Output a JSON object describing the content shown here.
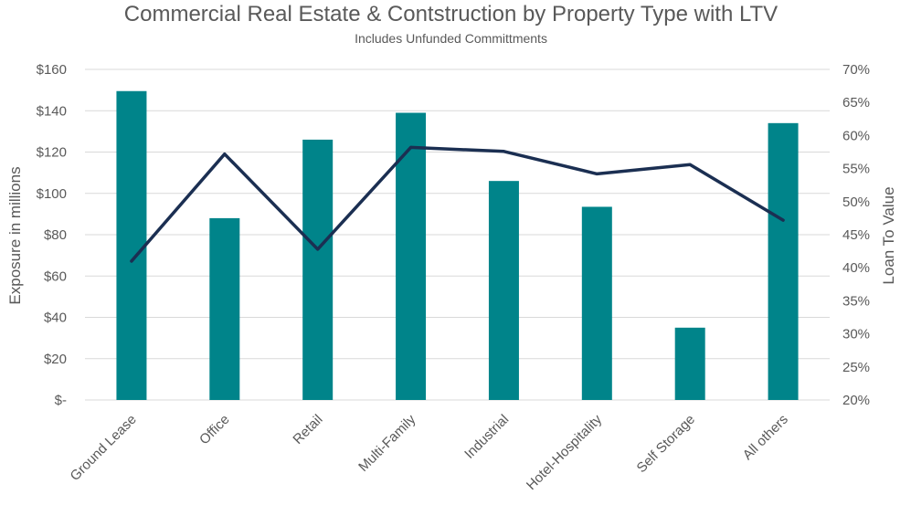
{
  "chart_data": {
    "type": "bar+line",
    "title": "Commercial Real Estate & Contstruction by Property Type with LTV",
    "subtitle": "Includes Unfunded Committments",
    "categories": [
      "Ground Lease",
      "Office",
      "Retail",
      "Multi-Family",
      "Industrial",
      "Hotel-Hospitality",
      "Self Storage",
      "All others"
    ],
    "series": [
      {
        "name": "Exposure in millions",
        "type": "bar",
        "axis": "left",
        "color": "#00848A",
        "values": [
          149.5,
          88,
          126,
          139,
          106,
          93.5,
          35,
          134
        ]
      },
      {
        "name": "Loan To Value",
        "type": "line",
        "axis": "right",
        "color": "#1B2F52",
        "values": [
          41.0,
          57.2,
          42.8,
          58.2,
          57.6,
          54.2,
          55.6,
          47.2
        ]
      }
    ],
    "ylabel": "Exposure in millions",
    "y2label": "Loan To Value",
    "ylim": [
      0,
      160
    ],
    "y2lim": [
      20,
      70
    ],
    "yticks": [
      "$-",
      "$20",
      "$40",
      "$60",
      "$80",
      "$100",
      "$120",
      "$140",
      "$160"
    ],
    "y2ticks": [
      "20%",
      "25%",
      "30%",
      "35%",
      "40%",
      "45%",
      "50%",
      "55%",
      "60%",
      "65%",
      "70%"
    ],
    "grid": true,
    "legend": "none"
  }
}
